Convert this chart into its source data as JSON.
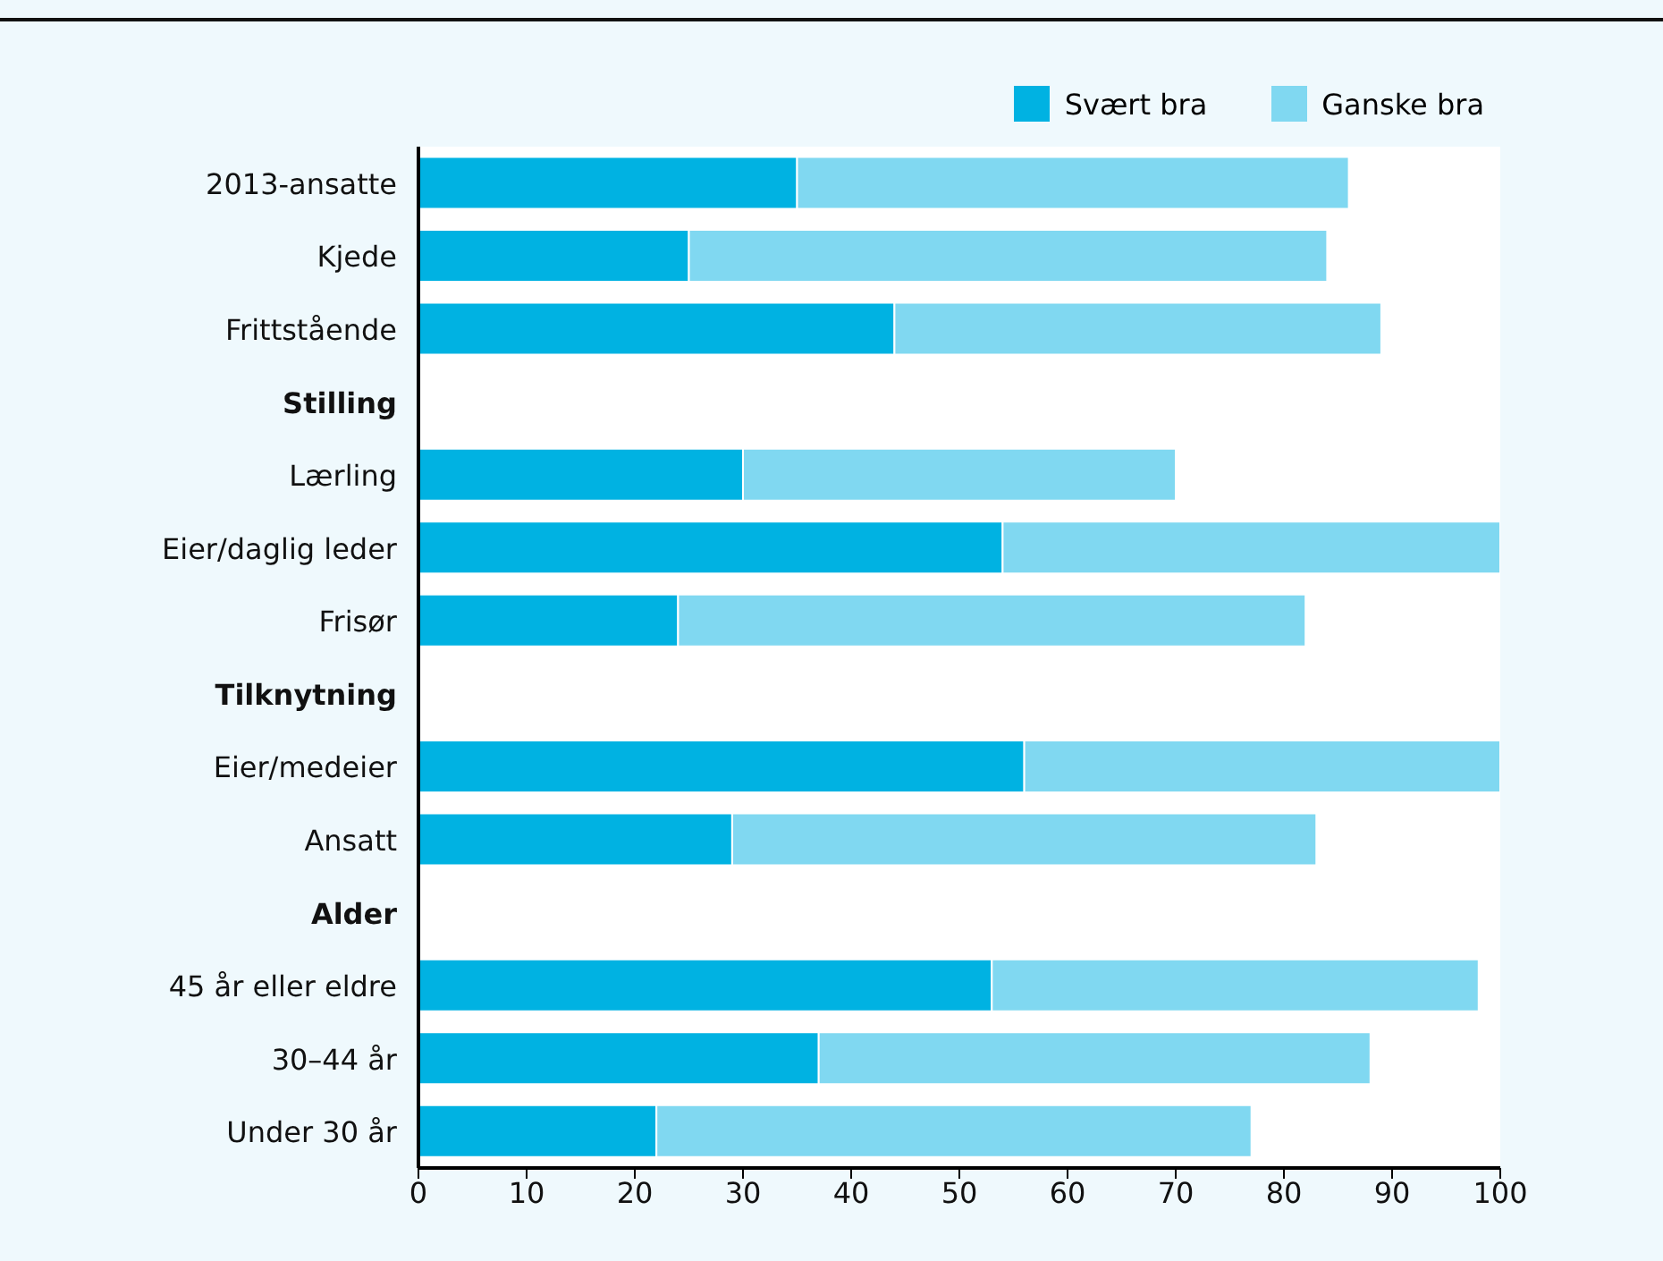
{
  "chart_data": {
    "type": "bar",
    "orientation": "horizontal",
    "stacked": true,
    "categories": [
      "2013-ansatte",
      "Kjede",
      "Frittstående",
      "Stilling",
      "Lærling",
      "Eier/daglig leder",
      "Frisør",
      "Tilknytning",
      "Eier/medeier",
      "Ansatt",
      "Alder",
      "45 år eller eldre",
      "30–44 år",
      "Under 30 år"
    ],
    "series": [
      {
        "name": "Svært bra",
        "color": "#00b2e2",
        "values": [
          35,
          25,
          44,
          null,
          30,
          54,
          24,
          null,
          56,
          29,
          null,
          53,
          37,
          22
        ]
      },
      {
        "name": "Ganske bra",
        "color": "#80d8f1",
        "values": [
          51,
          59,
          45,
          null,
          40,
          46,
          58,
          null,
          44,
          54,
          null,
          45,
          51,
          55
        ]
      }
    ],
    "xlim": [
      0,
      100
    ],
    "xticks": [
      0,
      10,
      20,
      30,
      40,
      50,
      60,
      70,
      80,
      90,
      100
    ],
    "grid": false,
    "legend": "top right"
  }
}
